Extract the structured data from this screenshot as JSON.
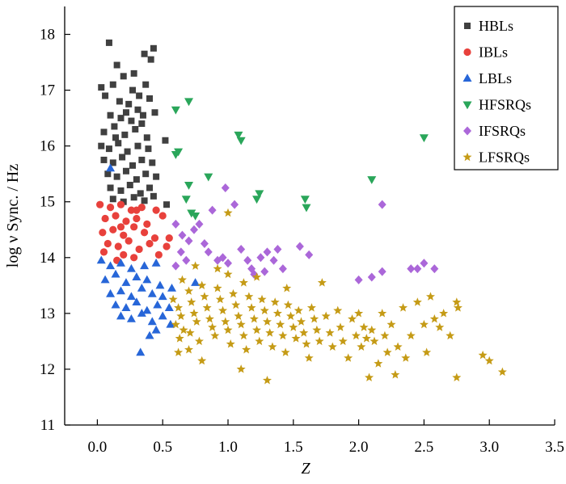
{
  "chart_data": {
    "type": "scatter",
    "title": "",
    "xlabel": "Z",
    "ylabel": "log ν Sync. / Hz",
    "xlim": [
      -0.25,
      3.5
    ],
    "ylim": [
      11,
      18.5
    ],
    "xticks": [
      "0.0",
      "0.5",
      "1.0",
      "1.5",
      "2.0",
      "2.5",
      "3.0",
      "3.5"
    ],
    "yticks": [
      "11",
      "12",
      "13",
      "14",
      "15",
      "16",
      "17",
      "18"
    ],
    "legend_position": "top-right",
    "series": [
      {
        "name": "HBLs",
        "marker": "square",
        "color": "#404040",
        "points": [
          [
            0.09,
            17.85
          ],
          [
            0.15,
            17.45
          ],
          [
            0.36,
            17.65
          ],
          [
            0.43,
            17.75
          ],
          [
            0.41,
            17.55
          ],
          [
            0.03,
            17.05
          ],
          [
            0.12,
            17.1
          ],
          [
            0.2,
            17.25
          ],
          [
            0.28,
            17.3
          ],
          [
            0.37,
            17.1
          ],
          [
            0.06,
            16.9
          ],
          [
            0.17,
            16.8
          ],
          [
            0.24,
            16.75
          ],
          [
            0.32,
            16.9
          ],
          [
            0.4,
            16.85
          ],
          [
            0.1,
            16.55
          ],
          [
            0.18,
            16.5
          ],
          [
            0.26,
            16.45
          ],
          [
            0.35,
            16.55
          ],
          [
            0.44,
            16.6
          ],
          [
            0.05,
            16.25
          ],
          [
            0.13,
            16.35
          ],
          [
            0.21,
            16.2
          ],
          [
            0.29,
            16.3
          ],
          [
            0.38,
            16.15
          ],
          [
            0.03,
            16.0
          ],
          [
            0.09,
            15.95
          ],
          [
            0.16,
            16.05
          ],
          [
            0.23,
            15.9
          ],
          [
            0.31,
            16.0
          ],
          [
            0.39,
            15.95
          ],
          [
            0.52,
            16.1
          ],
          [
            0.05,
            15.75
          ],
          [
            0.12,
            15.7
          ],
          [
            0.19,
            15.8
          ],
          [
            0.27,
            15.65
          ],
          [
            0.34,
            15.75
          ],
          [
            0.42,
            15.7
          ],
          [
            0.08,
            15.5
          ],
          [
            0.15,
            15.45
          ],
          [
            0.22,
            15.55
          ],
          [
            0.3,
            15.4
          ],
          [
            0.37,
            15.5
          ],
          [
            0.45,
            15.45
          ],
          [
            0.1,
            15.25
          ],
          [
            0.18,
            15.2
          ],
          [
            0.25,
            15.3
          ],
          [
            0.33,
            15.15
          ],
          [
            0.4,
            15.25
          ],
          [
            0.12,
            15.05
          ],
          [
            0.2,
            15.0
          ],
          [
            0.28,
            15.08
          ],
          [
            0.36,
            15.02
          ],
          [
            0.43,
            15.1
          ],
          [
            0.53,
            14.95
          ],
          [
            0.22,
            16.6
          ],
          [
            0.31,
            16.65
          ],
          [
            0.27,
            17.0
          ],
          [
            0.14,
            16.15
          ],
          [
            0.34,
            16.4
          ]
        ]
      },
      {
        "name": "IBLs",
        "marker": "circle",
        "color": "#e8413c",
        "points": [
          [
            0.02,
            14.95
          ],
          [
            0.1,
            14.9
          ],
          [
            0.18,
            14.95
          ],
          [
            0.26,
            14.85
          ],
          [
            0.34,
            14.9
          ],
          [
            0.45,
            14.85
          ],
          [
            0.06,
            14.7
          ],
          [
            0.14,
            14.75
          ],
          [
            0.22,
            14.65
          ],
          [
            0.3,
            14.7
          ],
          [
            0.38,
            14.6
          ],
          [
            0.5,
            14.75
          ],
          [
            0.04,
            14.45
          ],
          [
            0.12,
            14.5
          ],
          [
            0.2,
            14.4
          ],
          [
            0.28,
            14.55
          ],
          [
            0.36,
            14.45
          ],
          [
            0.44,
            14.35
          ],
          [
            0.08,
            14.25
          ],
          [
            0.16,
            14.2
          ],
          [
            0.24,
            14.3
          ],
          [
            0.32,
            14.15
          ],
          [
            0.4,
            14.25
          ],
          [
            0.53,
            14.2
          ],
          [
            0.05,
            14.1
          ],
          [
            0.2,
            14.05
          ],
          [
            0.28,
            14.0
          ],
          [
            0.15,
            13.95
          ],
          [
            0.47,
            14.05
          ],
          [
            0.55,
            14.35
          ],
          [
            0.3,
            14.85
          ],
          [
            0.18,
            14.55
          ]
        ]
      },
      {
        "name": "LBLs",
        "marker": "triangle",
        "color": "#2766d8",
        "points": [
          [
            0.1,
            15.6
          ],
          [
            0.03,
            13.95
          ],
          [
            0.1,
            13.85
          ],
          [
            0.18,
            13.9
          ],
          [
            0.26,
            13.8
          ],
          [
            0.36,
            13.85
          ],
          [
            0.45,
            13.9
          ],
          [
            0.06,
            13.6
          ],
          [
            0.14,
            13.7
          ],
          [
            0.22,
            13.55
          ],
          [
            0.3,
            13.65
          ],
          [
            0.38,
            13.6
          ],
          [
            0.48,
            13.5
          ],
          [
            0.1,
            13.35
          ],
          [
            0.18,
            13.4
          ],
          [
            0.26,
            13.3
          ],
          [
            0.34,
            13.45
          ],
          [
            0.42,
            13.35
          ],
          [
            0.5,
            13.3
          ],
          [
            0.14,
            13.15
          ],
          [
            0.22,
            13.1
          ],
          [
            0.3,
            13.2
          ],
          [
            0.38,
            13.05
          ],
          [
            0.46,
            13.15
          ],
          [
            0.55,
            13.1
          ],
          [
            0.18,
            12.95
          ],
          [
            0.26,
            12.9
          ],
          [
            0.34,
            13.0
          ],
          [
            0.42,
            12.85
          ],
          [
            0.5,
            12.95
          ],
          [
            0.56,
            12.8
          ],
          [
            0.4,
            12.6
          ],
          [
            0.33,
            12.3
          ],
          [
            0.45,
            12.7
          ],
          [
            0.57,
            13.45
          ],
          [
            0.75,
            13.55
          ]
        ]
      },
      {
        "name": "HFSRQs",
        "marker": "triangle-down",
        "color": "#2aa65a",
        "points": [
          [
            0.6,
            16.65
          ],
          [
            0.7,
            16.8
          ],
          [
            0.62,
            15.9
          ],
          [
            0.6,
            15.85
          ],
          [
            0.7,
            15.3
          ],
          [
            0.68,
            15.05
          ],
          [
            0.72,
            14.8
          ],
          [
            0.75,
            14.75
          ],
          [
            0.85,
            15.45
          ],
          [
            1.08,
            16.2
          ],
          [
            1.1,
            16.1
          ],
          [
            1.22,
            15.05
          ],
          [
            1.24,
            15.15
          ],
          [
            1.59,
            15.05
          ],
          [
            1.6,
            14.9
          ],
          [
            2.1,
            15.4
          ],
          [
            2.5,
            16.15
          ]
        ]
      },
      {
        "name": "IFSRQs",
        "marker": "diamond",
        "color": "#ab67d9",
        "points": [
          [
            0.6,
            14.6
          ],
          [
            0.65,
            14.4
          ],
          [
            0.7,
            14.3
          ],
          [
            0.74,
            14.5
          ],
          [
            0.64,
            14.1
          ],
          [
            0.68,
            13.95
          ],
          [
            0.6,
            13.85
          ],
          [
            0.78,
            14.6
          ],
          [
            0.88,
            14.85
          ],
          [
            0.85,
            14.1
          ],
          [
            0.92,
            13.95
          ],
          [
            0.96,
            14.0
          ],
          [
            0.82,
            14.25
          ],
          [
            0.98,
            15.25
          ],
          [
            1.05,
            14.95
          ],
          [
            1.0,
            13.9
          ],
          [
            1.1,
            14.15
          ],
          [
            1.18,
            13.8
          ],
          [
            1.15,
            13.95
          ],
          [
            1.25,
            14.0
          ],
          [
            1.28,
            13.75
          ],
          [
            1.3,
            14.1
          ],
          [
            1.38,
            14.15
          ],
          [
            1.35,
            13.95
          ],
          [
            1.2,
            13.7
          ],
          [
            1.42,
            13.8
          ],
          [
            1.55,
            14.2
          ],
          [
            1.62,
            14.05
          ],
          [
            2.0,
            13.6
          ],
          [
            2.1,
            13.65
          ],
          [
            2.18,
            13.75
          ],
          [
            2.18,
            14.95
          ],
          [
            2.4,
            13.8
          ],
          [
            2.45,
            13.8
          ],
          [
            2.5,
            13.9
          ],
          [
            2.58,
            13.8
          ]
        ]
      },
      {
        "name": "LFSRQs",
        "marker": "star",
        "color": "#c59b16",
        "points": [
          [
            0.58,
            13.25
          ],
          [
            0.62,
            13.1
          ],
          [
            0.64,
            12.95
          ],
          [
            0.6,
            12.8
          ],
          [
            0.66,
            12.7
          ],
          [
            0.63,
            12.55
          ],
          [
            0.7,
            13.4
          ],
          [
            0.72,
            13.2
          ],
          [
            0.74,
            13.0
          ],
          [
            0.76,
            12.85
          ],
          [
            0.71,
            12.65
          ],
          [
            0.78,
            12.5
          ],
          [
            0.8,
            13.5
          ],
          [
            0.82,
            13.3
          ],
          [
            0.84,
            13.1
          ],
          [
            0.86,
            12.9
          ],
          [
            0.88,
            12.75
          ],
          [
            0.9,
            12.6
          ],
          [
            0.92,
            13.45
          ],
          [
            0.94,
            13.25
          ],
          [
            0.96,
            13.05
          ],
          [
            0.98,
            12.85
          ],
          [
            1.0,
            12.7
          ],
          [
            1.02,
            12.45
          ],
          [
            1.04,
            13.35
          ],
          [
            1.06,
            13.15
          ],
          [
            1.08,
            12.95
          ],
          [
            1.1,
            12.8
          ],
          [
            1.12,
            12.6
          ],
          [
            1.14,
            12.35
          ],
          [
            1.16,
            13.3
          ],
          [
            1.18,
            13.1
          ],
          [
            1.2,
            12.9
          ],
          [
            1.22,
            12.7
          ],
          [
            1.24,
            12.5
          ],
          [
            1.26,
            13.25
          ],
          [
            1.28,
            13.05
          ],
          [
            1.3,
            12.85
          ],
          [
            1.32,
            12.65
          ],
          [
            1.34,
            12.4
          ],
          [
            1.36,
            13.2
          ],
          [
            1.38,
            13.0
          ],
          [
            1.4,
            12.8
          ],
          [
            1.42,
            12.6
          ],
          [
            1.44,
            12.3
          ],
          [
            1.46,
            13.15
          ],
          [
            1.48,
            12.95
          ],
          [
            1.5,
            12.75
          ],
          [
            1.52,
            12.55
          ],
          [
            1.54,
            13.05
          ],
          [
            1.56,
            12.85
          ],
          [
            1.58,
            12.65
          ],
          [
            1.6,
            12.45
          ],
          [
            1.62,
            12.2
          ],
          [
            1.64,
            13.1
          ],
          [
            1.66,
            12.9
          ],
          [
            1.68,
            12.7
          ],
          [
            1.7,
            12.5
          ],
          [
            1.72,
            13.55
          ],
          [
            1.75,
            12.95
          ],
          [
            1.78,
            12.65
          ],
          [
            1.8,
            12.4
          ],
          [
            1.84,
            13.05
          ],
          [
            1.86,
            12.75
          ],
          [
            1.88,
            12.5
          ],
          [
            1.92,
            12.2
          ],
          [
            1.95,
            12.9
          ],
          [
            1.98,
            12.6
          ],
          [
            2.0,
            13.0
          ],
          [
            2.02,
            12.4
          ],
          [
            2.04,
            12.75
          ],
          [
            2.06,
            12.55
          ],
          [
            2.08,
            11.85
          ],
          [
            2.1,
            12.7
          ],
          [
            2.12,
            12.5
          ],
          [
            2.15,
            12.1
          ],
          [
            2.18,
            13.0
          ],
          [
            2.2,
            12.6
          ],
          [
            2.22,
            12.3
          ],
          [
            2.25,
            12.8
          ],
          [
            2.28,
            11.9
          ],
          [
            2.3,
            12.4
          ],
          [
            2.34,
            13.1
          ],
          [
            2.36,
            12.2
          ],
          [
            2.4,
            12.6
          ],
          [
            2.45,
            13.2
          ],
          [
            2.5,
            12.8
          ],
          [
            2.52,
            12.3
          ],
          [
            2.55,
            13.3
          ],
          [
            2.58,
            12.9
          ],
          [
            2.62,
            12.75
          ],
          [
            2.65,
            13.0
          ],
          [
            2.7,
            12.6
          ],
          [
            2.75,
            13.2
          ],
          [
            2.76,
            13.1
          ],
          [
            2.75,
            11.85
          ],
          [
            2.95,
            12.25
          ],
          [
            3.0,
            12.15
          ],
          [
            3.1,
            11.95
          ],
          [
            1.0,
            14.8
          ],
          [
            1.1,
            12.0
          ],
          [
            1.3,
            11.8
          ],
          [
            0.62,
            12.3
          ],
          [
            0.75,
            13.85
          ],
          [
            1.0,
            13.7
          ],
          [
            0.92,
            13.8
          ],
          [
            1.12,
            13.55
          ],
          [
            1.22,
            13.65
          ],
          [
            1.45,
            13.45
          ],
          [
            0.65,
            13.6
          ],
          [
            0.7,
            12.35
          ],
          [
            0.8,
            12.15
          ]
        ]
      }
    ]
  }
}
